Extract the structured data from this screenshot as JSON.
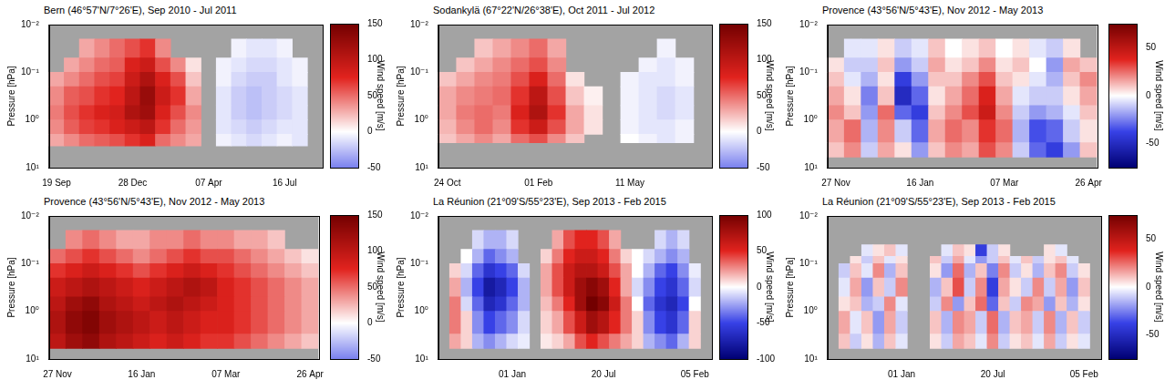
{
  "chart_data": [
    {
      "type": "heatmap",
      "title": "Bern (46°57'N/7°26'E), Sep 2010 - Jul 2011",
      "y_label": "Pressure [hPa]",
      "log": "y",
      "ylim": [
        10,
        0.01
      ],
      "yticks": [
        {
          "value": 10,
          "label": "10¹"
        },
        {
          "value": 1,
          "label": "10⁰"
        },
        {
          "value": 0.1,
          "label": "10⁻¹"
        },
        {
          "value": 0.01,
          "label": "10⁻²"
        }
      ],
      "categories": [
        "19 Sep",
        null,
        null,
        null,
        null,
        "28 Dec",
        null,
        null,
        null,
        null,
        "07 Apr",
        null,
        null,
        null,
        null,
        "16 Jul",
        null,
        null
      ],
      "pressure_edges": [
        3.5,
        2,
        1,
        0.5,
        0.2,
        0.1,
        0.05,
        0.02
      ],
      "values": [
        [
          30,
          40,
          50,
          55,
          60,
          70,
          80,
          50,
          40,
          30,
          null,
          -5,
          -10,
          -15,
          -10,
          -5,
          -10,
          null
        ],
        [
          40,
          55,
          65,
          70,
          80,
          90,
          100,
          70,
          50,
          35,
          null,
          -10,
          -15,
          -20,
          -15,
          -10,
          -10,
          null
        ],
        [
          45,
          60,
          70,
          80,
          85,
          110,
          120,
          80,
          60,
          40,
          null,
          -10,
          -20,
          -25,
          -20,
          -15,
          -10,
          null
        ],
        [
          40,
          55,
          60,
          70,
          75,
          100,
          125,
          90,
          70,
          30,
          null,
          -10,
          -20,
          -25,
          -20,
          -15,
          -10,
          null
        ],
        [
          30,
          40,
          50,
          60,
          65,
          90,
          110,
          80,
          60,
          20,
          null,
          -5,
          -15,
          -20,
          -20,
          -10,
          -5,
          null
        ],
        [
          null,
          30,
          40,
          50,
          55,
          80,
          90,
          60,
          40,
          10,
          null,
          -5,
          -10,
          -15,
          -15,
          -10,
          -5,
          null
        ],
        [
          null,
          null,
          30,
          40,
          50,
          60,
          70,
          40,
          null,
          null,
          null,
          null,
          -5,
          -10,
          -10,
          -5,
          null,
          null
        ]
      ],
      "colorbar": {
        "label": "Wind speed [m/s]",
        "lim": [
          -50,
          150
        ],
        "ticks": [
          -50,
          0,
          50,
          100,
          150
        ]
      }
    },
    {
      "type": "heatmap",
      "title": "Sodankylä (67°22'N/26°38'E), Oct 2011 - Jul 2012",
      "y_label": "Pressure [hPa]",
      "log": "y",
      "ylim": [
        10,
        0.01
      ],
      "yticks": [
        {
          "value": 10,
          "label": "10¹"
        },
        {
          "value": 1,
          "label": "10⁰"
        },
        {
          "value": 0.1,
          "label": "10⁻¹"
        },
        {
          "value": 0.01,
          "label": "10⁻²"
        }
      ],
      "categories": [
        "24 Oct",
        null,
        null,
        null,
        null,
        "01 Feb",
        null,
        null,
        null,
        null,
        "11 May",
        null,
        null,
        null,
        null
      ],
      "pressure_edges": [
        3,
        2,
        1,
        0.5,
        0.2,
        0.1,
        0.05,
        0.02
      ],
      "values": [
        [
          20,
          30,
          40,
          30,
          50,
          60,
          40,
          20,
          null,
          null,
          0,
          -5,
          -10,
          -5,
          null
        ],
        [
          25,
          40,
          50,
          40,
          70,
          90,
          60,
          30,
          10,
          null,
          -5,
          -10,
          -10,
          -5,
          null
        ],
        [
          30,
          45,
          50,
          45,
          80,
          110,
          70,
          30,
          10,
          null,
          -5,
          -10,
          -15,
          -10,
          null
        ],
        [
          30,
          40,
          45,
          50,
          70,
          100,
          60,
          20,
          5,
          null,
          -5,
          -10,
          -15,
          -10,
          null
        ],
        [
          20,
          30,
          40,
          45,
          60,
          80,
          50,
          10,
          null,
          null,
          -5,
          -10,
          -10,
          -5,
          null
        ],
        [
          null,
          20,
          30,
          40,
          50,
          60,
          40,
          null,
          null,
          null,
          null,
          -5,
          -10,
          -5,
          null
        ],
        [
          null,
          null,
          20,
          30,
          40,
          50,
          30,
          null,
          null,
          null,
          null,
          null,
          -5,
          null,
          null
        ]
      ],
      "colorbar": {
        "label": "Wind speed [m/s]",
        "lim": [
          -50,
          150
        ],
        "ticks": [
          -50,
          0,
          50,
          100,
          150
        ]
      }
    },
    {
      "type": "heatmap",
      "title": "Provence (43°56'N/5°43'E), Nov 2012 - May 2013",
      "y_label": "Pressure [hPa]",
      "log": "y",
      "ylim": [
        10,
        0.01
      ],
      "yticks": [
        {
          "value": 10,
          "label": "10¹"
        },
        {
          "value": 1,
          "label": "10⁰"
        },
        {
          "value": 0.1,
          "label": "10⁻¹"
        },
        {
          "value": 0.01,
          "label": "10⁻²"
        }
      ],
      "categories": [
        "27 Nov",
        null,
        null,
        null,
        null,
        "16 Jan",
        null,
        null,
        null,
        null,
        "07 Mar",
        null,
        null,
        null,
        null,
        "26 Apr"
      ],
      "pressure_edges": [
        6,
        3,
        1,
        0.5,
        0.2,
        0.1,
        0.05,
        0.02
      ],
      "values": [
        [
          10,
          20,
          -10,
          15,
          5,
          -20,
          10,
          20,
          15,
          30,
          20,
          -10,
          -30,
          -40,
          -20,
          10
        ],
        [
          15,
          25,
          -15,
          20,
          -10,
          -30,
          15,
          25,
          20,
          35,
          25,
          -15,
          -35,
          -30,
          -10,
          5
        ],
        [
          20,
          10,
          -20,
          25,
          -30,
          -40,
          10,
          20,
          30,
          45,
          20,
          -10,
          -20,
          -15,
          -5,
          10
        ],
        [
          15,
          5,
          -25,
          10,
          -50,
          -30,
          5,
          15,
          25,
          40,
          15,
          -5,
          -10,
          -10,
          5,
          15
        ],
        [
          10,
          -5,
          -15,
          5,
          -40,
          -20,
          10,
          10,
          20,
          30,
          10,
          5,
          -5,
          -15,
          10,
          20
        ],
        [
          5,
          -10,
          -10,
          10,
          -20,
          -10,
          15,
          5,
          10,
          20,
          5,
          10,
          0,
          -20,
          15,
          10
        ],
        [
          null,
          -5,
          -5,
          5,
          -10,
          -5,
          10,
          0,
          5,
          10,
          0,
          5,
          -5,
          -10,
          5,
          null
        ]
      ],
      "colorbar": {
        "label": "Wind speed [m/s]",
        "lim": [
          -75,
          75
        ],
        "ticks": [
          -50,
          0,
          50
        ]
      }
    },
    {
      "type": "heatmap",
      "title": "Provence (43°56'N/5°43'E), Nov 2012 - May 2013",
      "y_label": "Pressure [hPa]",
      "log": "y",
      "ylim": [
        10,
        0.01
      ],
      "yticks": [
        {
          "value": 10,
          "label": "10¹"
        },
        {
          "value": 1,
          "label": "10⁰"
        },
        {
          "value": 0.1,
          "label": "10⁻¹"
        },
        {
          "value": 0.01,
          "label": "10⁻²"
        }
      ],
      "categories": [
        "27 Nov",
        null,
        null,
        null,
        null,
        "16 Jan",
        null,
        null,
        null,
        null,
        "07 Mar",
        null,
        null,
        null,
        null,
        "26 Apr"
      ],
      "pressure_edges": [
        6,
        3,
        1,
        0.5,
        0.2,
        0.1,
        0.05,
        0.02
      ],
      "values": [
        [
          100,
          120,
          130,
          110,
          100,
          90,
          80,
          90,
          80,
          70,
          70,
          60,
          50,
          40,
          30,
          20
        ],
        [
          110,
          130,
          140,
          120,
          110,
          100,
          90,
          100,
          90,
          80,
          80,
          70,
          60,
          50,
          40,
          30
        ],
        [
          100,
          120,
          130,
          110,
          100,
          90,
          100,
          110,
          100,
          90,
          80,
          70,
          60,
          50,
          40,
          30
        ],
        [
          90,
          100,
          110,
          100,
          90,
          80,
          90,
          100,
          110,
          100,
          80,
          70,
          60,
          50,
          40,
          30
        ],
        [
          70,
          80,
          90,
          80,
          70,
          60,
          70,
          80,
          90,
          80,
          70,
          60,
          50,
          40,
          30,
          20
        ],
        [
          50,
          60,
          70,
          60,
          50,
          40,
          50,
          60,
          70,
          60,
          60,
          50,
          40,
          30,
          20,
          10
        ],
        [
          null,
          40,
          50,
          40,
          30,
          30,
          40,
          40,
          50,
          40,
          40,
          30,
          30,
          20,
          null,
          null
        ]
      ],
      "colorbar": {
        "label": "Wind speed [m/s]",
        "lim": [
          -50,
          150
        ],
        "ticks": [
          -50,
          0,
          50,
          100,
          150
        ]
      }
    },
    {
      "type": "heatmap",
      "title": "La Réunion (21°09'S/55°23'E), Sep 2013 - Feb 2015",
      "y_label": "Pressure [hPa]",
      "log": "y",
      "ylim": [
        10,
        0.01
      ],
      "yticks": [
        {
          "value": 10,
          "label": "10¹"
        },
        {
          "value": 1,
          "label": "10⁰"
        },
        {
          "value": 0.1,
          "label": "10⁻¹"
        },
        {
          "value": 0.01,
          "label": "10⁻²"
        }
      ],
      "categories": [
        null,
        null,
        null,
        null,
        null,
        null,
        "01 Jan",
        null,
        null,
        null,
        null,
        null,
        null,
        null,
        "20 Jul",
        null,
        null,
        null,
        null,
        null,
        null,
        null,
        "05 Feb",
        null
      ],
      "pressure_edges": [
        6,
        3,
        1,
        0.5,
        0.2,
        0.1,
        0.05,
        0.02
      ],
      "values": [
        [
          null,
          20,
          10,
          -20,
          -30,
          -20,
          -10,
          -5,
          null,
          5,
          10,
          20,
          40,
          50,
          40,
          30,
          20,
          10,
          -20,
          -30,
          -40,
          -20,
          10,
          null
        ],
        [
          null,
          30,
          10,
          -30,
          -50,
          -40,
          -30,
          -10,
          null,
          10,
          20,
          40,
          60,
          80,
          70,
          50,
          30,
          10,
          -30,
          -50,
          -60,
          -40,
          10,
          null
        ],
        [
          null,
          30,
          -10,
          -40,
          -70,
          -60,
          -40,
          -20,
          null,
          15,
          30,
          50,
          80,
          100,
          90,
          60,
          30,
          0,
          -40,
          -60,
          -70,
          -50,
          0,
          null
        ],
        [
          null,
          20,
          -20,
          -50,
          -80,
          -70,
          -50,
          -20,
          null,
          20,
          40,
          60,
          80,
          90,
          80,
          50,
          20,
          -10,
          -30,
          -50,
          -60,
          -40,
          -10,
          null
        ],
        [
          null,
          10,
          -10,
          -40,
          -60,
          -50,
          -40,
          -10,
          null,
          20,
          40,
          60,
          70,
          70,
          60,
          40,
          20,
          0,
          -20,
          -40,
          -50,
          -30,
          -5,
          null
        ],
        [
          null,
          null,
          0,
          -20,
          -40,
          -30,
          -20,
          null,
          null,
          10,
          30,
          50,
          60,
          60,
          50,
          30,
          10,
          0,
          -10,
          -20,
          -30,
          -20,
          null,
          null
        ],
        [
          null,
          null,
          null,
          -10,
          -20,
          -20,
          -10,
          null,
          null,
          null,
          20,
          40,
          50,
          50,
          40,
          20,
          null,
          null,
          null,
          -10,
          -20,
          -10,
          null,
          null
        ]
      ],
      "colorbar": {
        "label": "Wind speed [m/s]",
        "lim": [
          -100,
          100
        ],
        "ticks": [
          -100,
          -50,
          0,
          50,
          100
        ]
      }
    },
    {
      "type": "heatmap",
      "title": "La Réunion (21°09'S/55°23'E), Sep 2013 - Feb 2015",
      "y_label": "Pressure [hPa]",
      "log": "y",
      "ylim": [
        10,
        0.01
      ],
      "yticks": [
        {
          "value": 10,
          "label": "10¹"
        },
        {
          "value": 1,
          "label": "10⁰"
        },
        {
          "value": 0.1,
          "label": "10⁻¹"
        },
        {
          "value": 0.01,
          "label": "10⁻²"
        }
      ],
      "categories": [
        null,
        null,
        null,
        null,
        null,
        null,
        "01 Jan",
        null,
        null,
        null,
        null,
        null,
        null,
        null,
        "20 Jul",
        null,
        null,
        null,
        null,
        null,
        null,
        null,
        "05 Feb",
        null
      ],
      "pressure_edges": [
        6,
        3,
        1,
        0.5,
        0.2,
        0.1,
        0.07,
        0.04
      ],
      "values": [
        [
          null,
          10,
          -10,
          5,
          -15,
          10,
          -5,
          null,
          null,
          5,
          -10,
          15,
          10,
          -5,
          20,
          -10,
          5,
          10,
          -5,
          15,
          -10,
          5,
          -5,
          null
        ],
        [
          null,
          15,
          -5,
          10,
          -20,
          15,
          -10,
          null,
          null,
          10,
          -15,
          20,
          15,
          -10,
          25,
          -15,
          10,
          15,
          -10,
          20,
          -15,
          10,
          -10,
          null
        ],
        [
          null,
          5,
          10,
          -15,
          -10,
          20,
          -5,
          null,
          null,
          -10,
          20,
          -20,
          10,
          25,
          -30,
          10,
          -10,
          20,
          15,
          -20,
          10,
          -15,
          5,
          null
        ],
        [
          null,
          -5,
          15,
          -20,
          10,
          -10,
          20,
          null,
          null,
          -15,
          10,
          30,
          -10,
          20,
          -40,
          15,
          5,
          -10,
          20,
          -10,
          15,
          -20,
          10,
          null
        ],
        [
          null,
          -10,
          10,
          -5,
          20,
          -15,
          10,
          null,
          null,
          5,
          -20,
          25,
          -15,
          10,
          -25,
          20,
          -10,
          5,
          -15,
          10,
          20,
          -10,
          5,
          null
        ],
        [
          null,
          null,
          5,
          -10,
          10,
          -5,
          5,
          null,
          null,
          10,
          -10,
          15,
          -5,
          -20,
          -10,
          10,
          -5,
          10,
          -10,
          5,
          10,
          -5,
          null,
          null
        ],
        [
          null,
          null,
          null,
          -5,
          5,
          10,
          -5,
          null,
          null,
          null,
          -5,
          10,
          5,
          -40,
          -10,
          5,
          null,
          null,
          null,
          5,
          -5,
          null,
          null,
          null
        ]
      ],
      "colorbar": {
        "label": "Wind speed [m/s]",
        "lim": [
          -75,
          75
        ],
        "ticks": [
          -50,
          0,
          50
        ]
      }
    }
  ]
}
